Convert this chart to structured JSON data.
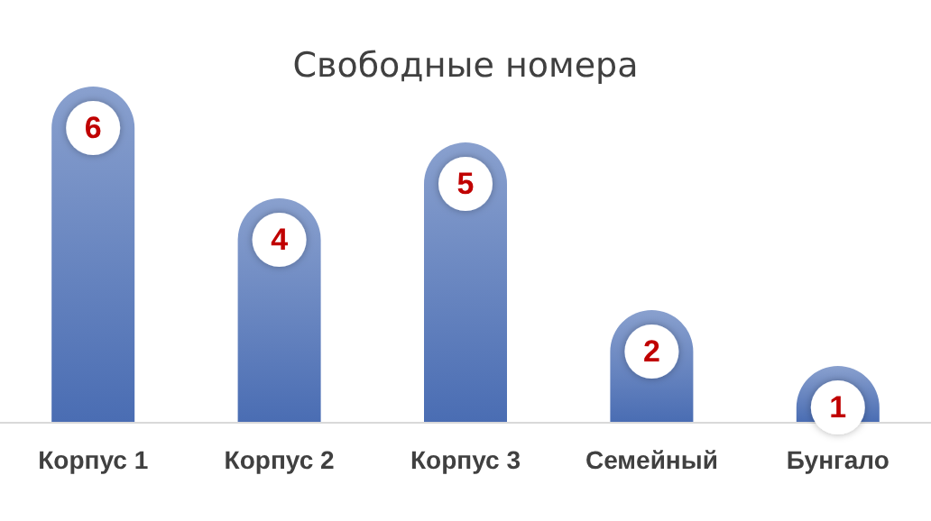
{
  "chart_data": {
    "type": "bar",
    "title": "Свободные номера",
    "categories": [
      "Корпус 1",
      "Корпус 2",
      "Корпус 3",
      "Семейный",
      "Бунгало"
    ],
    "values": [
      6,
      4,
      5,
      2,
      1
    ],
    "color": "#4a6db3",
    "data_labels": true
  }
}
